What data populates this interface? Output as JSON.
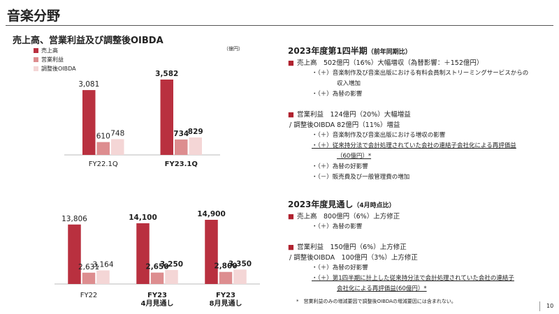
{
  "page": {
    "title": "音楽分野",
    "page_number": "10",
    "footnote": "*　営業利益のみの増減要因で調整後OIBDAの増減要因には含まれない。"
  },
  "colors": {
    "sales": "#b9303f",
    "op": "#dd8d8f",
    "oibda": "#f4d6d6"
  },
  "chart_data": [
    {
      "type": "bar",
      "title": "売上高、営業利益及び調整後OIBDA",
      "unit": "（億円）",
      "legend": [
        "売上高",
        "営業利益",
        "調整後OIBDA"
      ],
      "categories": [
        {
          "lines": [
            "FY22.1Q"
          ],
          "bold": false
        },
        {
          "lines": [
            "FY23.1Q"
          ],
          "bold": true
        }
      ],
      "series": [
        {
          "name": "売上高",
          "values": [
            3081,
            3582
          ],
          "labels": [
            "3,081",
            "3,582"
          ]
        },
        {
          "name": "営業利益",
          "values": [
            610,
            734
          ],
          "labels": [
            "610",
            "734"
          ]
        },
        {
          "name": "調整後OIBDA",
          "values": [
            748,
            829
          ],
          "labels": [
            "748",
            "829"
          ]
        }
      ]
    },
    {
      "type": "bar",
      "title": "",
      "categories": [
        {
          "lines": [
            "FY22"
          ],
          "bold": false
        },
        {
          "lines": [
            "FY23",
            "4月見通し"
          ],
          "bold": true
        },
        {
          "lines": [
            "FY23",
            "8月見通し"
          ],
          "bold": true
        }
      ],
      "series": [
        {
          "name": "売上高",
          "values": [
            13806,
            14100,
            14900
          ],
          "labels": [
            "13,806",
            "14,100",
            "14,900"
          ]
        },
        {
          "name": "営業利益",
          "values": [
            2631,
            2650,
            2800
          ],
          "labels": [
            "2,631",
            "2,650",
            "2,800"
          ]
        },
        {
          "name": "調整後OIBDA",
          "values": [
            3164,
            3250,
            3350
          ],
          "labels": [
            "3,164",
            "3,250",
            "3,350"
          ]
        }
      ]
    }
  ],
  "q1": {
    "heading": "2023年度第1四半期",
    "heading_note": "（前年同期比）",
    "sales": "売上高　502億円（16%）大幅増収（為替影響：＋152億円）",
    "sales_items": [
      "・（＋）音楽制作及び音楽出版における有料会員制ストリーミングサービスからの",
      "収入増加",
      "・（＋）為替の影響"
    ],
    "op": "営業利益　124億円（20%）大幅増益",
    "oibda": "/ 調整後OIBDA 82億円（11%）増益",
    "op_items": [
      "・（＋）音楽制作及び音楽出版における増収の影響",
      "・（＋）従来持分法で会計処理されていた会社の連結子会社化による再評価益",
      "（60億円）*",
      "・（＋）為替の好影響",
      "・（－）販売費及び一般管理費の増加"
    ]
  },
  "fy": {
    "heading": "2023年度見通し",
    "heading_note": "（4月時点比）",
    "sales": "売上高　800億円（6%）上方修正",
    "sales_items": [
      "・（＋）為替の影響"
    ],
    "op": "営業利益　150億円（6%）上方修正",
    "oibda": "/ 調整後OIBDA　100億円（3%）上方修正",
    "op_items": [
      "・（＋）為替の好影響",
      "・（＋）第1四半期に計上した従来持分法で会計処理されていた会社の連結子",
      "会社化による再評価益(60億円）*"
    ]
  }
}
